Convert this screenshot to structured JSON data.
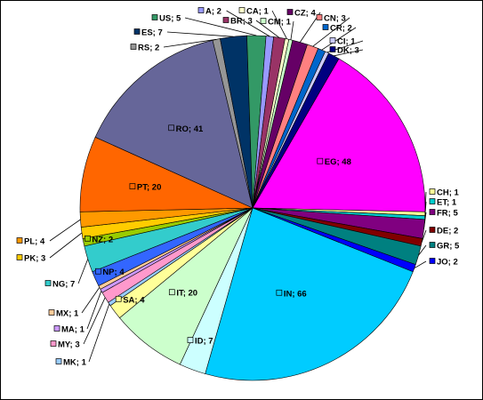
{
  "chart_data": {
    "type": "pie",
    "title": "",
    "legend": "none",
    "slices": [
      {
        "label": "EG",
        "value": 48,
        "color": "#ff00ff"
      },
      {
        "label": "CH",
        "value": 1,
        "color": "#ffff99"
      },
      {
        "label": "ET",
        "value": 1,
        "color": "#00cccc"
      },
      {
        "label": "FR",
        "value": 5,
        "color": "#800080"
      },
      {
        "label": "DE",
        "value": 2,
        "color": "#800000"
      },
      {
        "label": "GR",
        "value": 5,
        "color": "#008080"
      },
      {
        "label": "JO",
        "value": 2,
        "color": "#0000ff"
      },
      {
        "label": "IN",
        "value": 66,
        "color": "#00ccff"
      },
      {
        "label": "ID",
        "value": 7,
        "color": "#ccffff"
      },
      {
        "label": "IT",
        "value": 20,
        "color": "#ccffcc"
      },
      {
        "label": "SA",
        "value": 4,
        "color": "#ffff99"
      },
      {
        "label": "MK",
        "value": 1,
        "color": "#99ccff"
      },
      {
        "label": "MY",
        "value": 3,
        "color": "#ff99cc"
      },
      {
        "label": "MA",
        "value": 1,
        "color": "#cc99ff"
      },
      {
        "label": "MX",
        "value": 1,
        "color": "#ffcc99"
      },
      {
        "label": "NP",
        "value": 4,
        "color": "#3366ff"
      },
      {
        "label": "NG",
        "value": 7,
        "color": "#33cccc"
      },
      {
        "label": "NZ",
        "value": 2,
        "color": "#99cc00"
      },
      {
        "label": "PK",
        "value": 3,
        "color": "#ffcc00"
      },
      {
        "label": "PL",
        "value": 4,
        "color": "#ff9900"
      },
      {
        "label": "PT",
        "value": 20,
        "color": "#ff6600"
      },
      {
        "label": "RO",
        "value": 41,
        "color": "#666699"
      },
      {
        "label": "RS",
        "value": 2,
        "color": "#969696"
      },
      {
        "label": "ES",
        "value": 7,
        "color": "#003366"
      },
      {
        "label": "US",
        "value": 5,
        "color": "#339966"
      },
      {
        "label": "A",
        "value": 2,
        "color": "#9999ff"
      },
      {
        "label": "BR",
        "value": 3,
        "color": "#993366"
      },
      {
        "label": "CA",
        "value": 1,
        "color": "#ffffcc"
      },
      {
        "label": "CM",
        "value": 1,
        "color": "#ccffcc"
      },
      {
        "label": "CZ",
        "value": 4,
        "color": "#660066"
      },
      {
        "label": "CN",
        "value": 3,
        "color": "#ff8080"
      },
      {
        "label": "CR",
        "value": 2,
        "color": "#0066cc"
      },
      {
        "label": "CI",
        "value": 1,
        "color": "#ccccff"
      },
      {
        "label": "DK",
        "value": 3,
        "color": "#000080"
      }
    ]
  }
}
